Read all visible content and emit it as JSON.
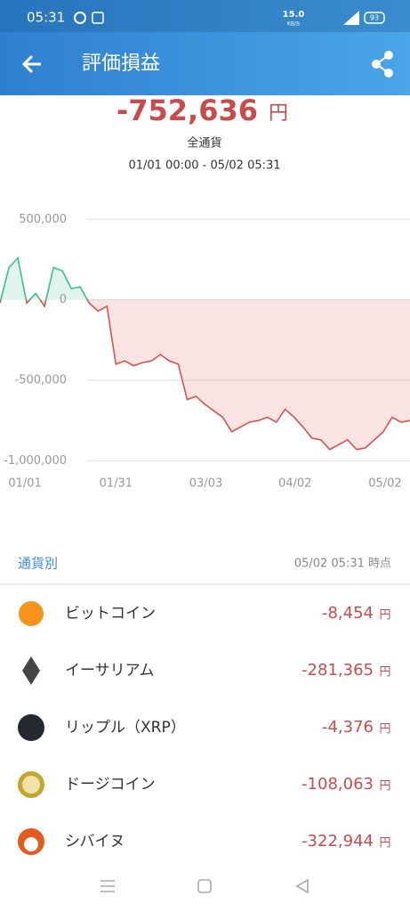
{
  "status_bar": {
    "time": "05:31",
    "speed": "15.0",
    "speed_unit": "KB/S",
    "battery": "93"
  },
  "header": {
    "title": "評価損益"
  },
  "summary": {
    "amount": "-752,636",
    "unit": "円",
    "scope": "全通貨",
    "period": "01/01 00:00 - 05/02 05:31"
  },
  "chart_data": {
    "type": "line",
    "series": [
      {
        "name": "評価損益",
        "color": "#d9534f",
        "positive_color": "#3dbd8f",
        "values": [
          -20000,
          200000,
          260000,
          -20000,
          40000,
          -40000,
          200000,
          180000,
          70000,
          80000,
          -20000,
          -70000,
          -40000,
          -400000,
          -380000,
          -410000,
          -390000,
          -380000,
          -340000,
          -380000,
          -400000,
          -620000,
          -600000,
          -650000,
          -690000,
          -730000,
          -820000,
          -790000,
          -760000,
          -750000,
          -730000,
          -760000,
          -680000,
          -730000,
          -790000,
          -860000,
          -870000,
          -930000,
          -900000,
          -870000,
          -930000,
          -920000,
          -870000,
          -820000,
          -730000,
          -760000,
          -750000
        ]
      }
    ],
    "xlim": [
      0,
      46
    ],
    "xticks": [
      {
        "value": 2.8,
        "label": "01/01"
      },
      {
        "value": 13,
        "label": "01/31"
      },
      {
        "value": 23.1,
        "label": "03/03"
      },
      {
        "value": 33.1,
        "label": "04/02"
      },
      {
        "value": 43.2,
        "label": "05/02"
      }
    ],
    "ylim": [
      -1070000,
      590000
    ],
    "yticks": [
      {
        "value": 500000,
        "label": "500,000"
      },
      0,
      {
        "value": -500000,
        "label": "-500,000"
      },
      {
        "value": -1000000,
        "label": "-1,000,000"
      }
    ],
    "grid": true
  },
  "list": {
    "title": "通貨別",
    "as_of": "05/02 05:31 時点",
    "items": [
      {
        "name": "ビットコイン",
        "amount": "-8,454",
        "unit": "円"
      },
      {
        "name": "イーサリアム",
        "amount": "-281,365",
        "unit": "円"
      },
      {
        "name": "リップル（XRP）",
        "amount": "-4,376",
        "unit": "円"
      },
      {
        "name": "ドージコイン",
        "amount": "-108,063",
        "unit": "円"
      },
      {
        "name": "シバイヌ",
        "amount": "-322,944",
        "unit": "円"
      }
    ]
  }
}
